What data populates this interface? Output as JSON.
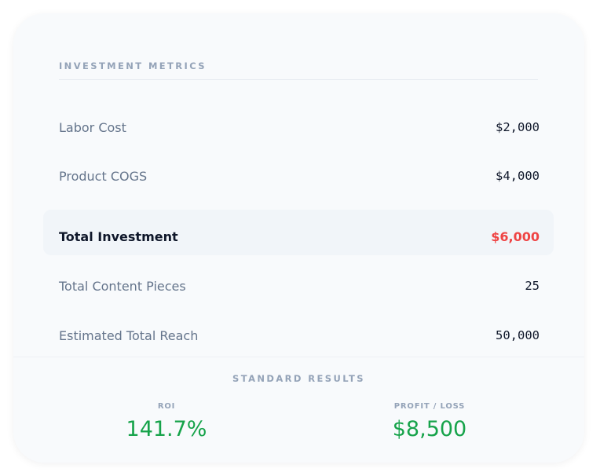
{
  "metrics": {
    "title": "INVESTMENT METRICS",
    "rows": [
      {
        "label": "Labor Cost",
        "value": "$2,000"
      },
      {
        "label": "Product COGS",
        "value": "$4,000"
      }
    ],
    "total": {
      "label": "Total Investment",
      "value": "$6,000",
      "color": "#ef4444"
    },
    "extra_rows": [
      {
        "label": "Total Content Pieces",
        "value": "25"
      },
      {
        "label": "Estimated Total Reach",
        "value": "50,000"
      }
    ]
  },
  "results": {
    "title": "STANDARD RESULTS",
    "roi": {
      "label": "ROI",
      "value": "141.7%"
    },
    "profit": {
      "label": "PROFIT / LOSS",
      "value": "$8,500"
    },
    "positive_color": "#16a34a"
  }
}
